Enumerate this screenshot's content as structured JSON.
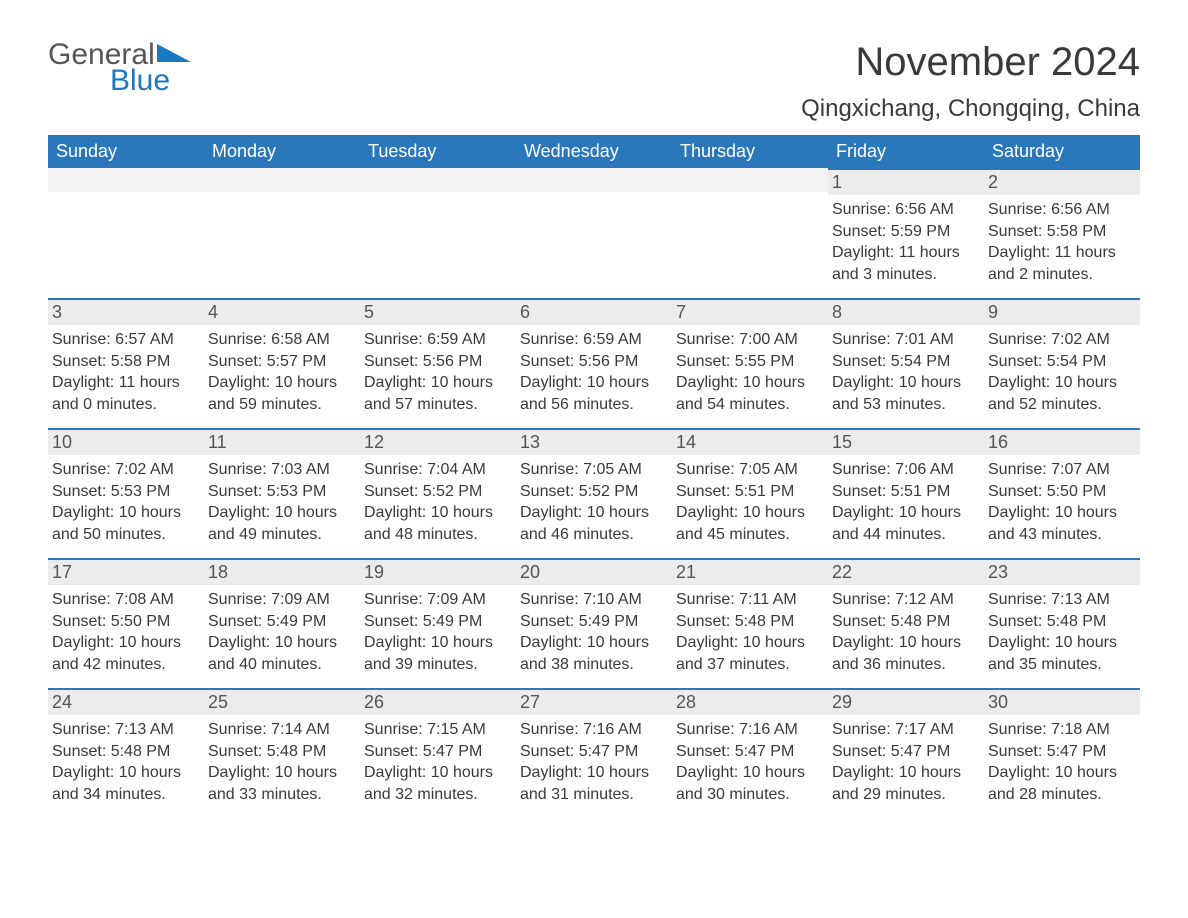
{
  "logo": {
    "word1": "General",
    "word2": "Blue"
  },
  "title": "November 2024",
  "location": "Qingxichang, Chongqing, China",
  "colors": {
    "header_bg": "#2a78bb",
    "header_text": "#ffffff",
    "strip_bg": "#ececec",
    "strip_border": "#2a78bb",
    "text": "#3a3a3a",
    "logo_gray": "#565656",
    "logo_blue": "#1c78c0",
    "background": "#ffffff"
  },
  "typography": {
    "title_fontsize": 40,
    "location_fontsize": 24,
    "header_fontsize": 18,
    "daynum_fontsize": 18,
    "body_fontsize": 16,
    "logo_fontsize": 30
  },
  "layout": {
    "columns": 7,
    "start_weekday": "Sunday",
    "first_day_column": 5
  },
  "weekdays": [
    "Sunday",
    "Monday",
    "Tuesday",
    "Wednesday",
    "Thursday",
    "Friday",
    "Saturday"
  ],
  "days": [
    {
      "n": "1",
      "sunrise": "Sunrise: 6:56 AM",
      "sunset": "Sunset: 5:59 PM",
      "daylight": "Daylight: 11 hours and 3 minutes."
    },
    {
      "n": "2",
      "sunrise": "Sunrise: 6:56 AM",
      "sunset": "Sunset: 5:58 PM",
      "daylight": "Daylight: 11 hours and 2 minutes."
    },
    {
      "n": "3",
      "sunrise": "Sunrise: 6:57 AM",
      "sunset": "Sunset: 5:58 PM",
      "daylight": "Daylight: 11 hours and 0 minutes."
    },
    {
      "n": "4",
      "sunrise": "Sunrise: 6:58 AM",
      "sunset": "Sunset: 5:57 PM",
      "daylight": "Daylight: 10 hours and 59 minutes."
    },
    {
      "n": "5",
      "sunrise": "Sunrise: 6:59 AM",
      "sunset": "Sunset: 5:56 PM",
      "daylight": "Daylight: 10 hours and 57 minutes."
    },
    {
      "n": "6",
      "sunrise": "Sunrise: 6:59 AM",
      "sunset": "Sunset: 5:56 PM",
      "daylight": "Daylight: 10 hours and 56 minutes."
    },
    {
      "n": "7",
      "sunrise": "Sunrise: 7:00 AM",
      "sunset": "Sunset: 5:55 PM",
      "daylight": "Daylight: 10 hours and 54 minutes."
    },
    {
      "n": "8",
      "sunrise": "Sunrise: 7:01 AM",
      "sunset": "Sunset: 5:54 PM",
      "daylight": "Daylight: 10 hours and 53 minutes."
    },
    {
      "n": "9",
      "sunrise": "Sunrise: 7:02 AM",
      "sunset": "Sunset: 5:54 PM",
      "daylight": "Daylight: 10 hours and 52 minutes."
    },
    {
      "n": "10",
      "sunrise": "Sunrise: 7:02 AM",
      "sunset": "Sunset: 5:53 PM",
      "daylight": "Daylight: 10 hours and 50 minutes."
    },
    {
      "n": "11",
      "sunrise": "Sunrise: 7:03 AM",
      "sunset": "Sunset: 5:53 PM",
      "daylight": "Daylight: 10 hours and 49 minutes."
    },
    {
      "n": "12",
      "sunrise": "Sunrise: 7:04 AM",
      "sunset": "Sunset: 5:52 PM",
      "daylight": "Daylight: 10 hours and 48 minutes."
    },
    {
      "n": "13",
      "sunrise": "Sunrise: 7:05 AM",
      "sunset": "Sunset: 5:52 PM",
      "daylight": "Daylight: 10 hours and 46 minutes."
    },
    {
      "n": "14",
      "sunrise": "Sunrise: 7:05 AM",
      "sunset": "Sunset: 5:51 PM",
      "daylight": "Daylight: 10 hours and 45 minutes."
    },
    {
      "n": "15",
      "sunrise": "Sunrise: 7:06 AM",
      "sunset": "Sunset: 5:51 PM",
      "daylight": "Daylight: 10 hours and 44 minutes."
    },
    {
      "n": "16",
      "sunrise": "Sunrise: 7:07 AM",
      "sunset": "Sunset: 5:50 PM",
      "daylight": "Daylight: 10 hours and 43 minutes."
    },
    {
      "n": "17",
      "sunrise": "Sunrise: 7:08 AM",
      "sunset": "Sunset: 5:50 PM",
      "daylight": "Daylight: 10 hours and 42 minutes."
    },
    {
      "n": "18",
      "sunrise": "Sunrise: 7:09 AM",
      "sunset": "Sunset: 5:49 PM",
      "daylight": "Daylight: 10 hours and 40 minutes."
    },
    {
      "n": "19",
      "sunrise": "Sunrise: 7:09 AM",
      "sunset": "Sunset: 5:49 PM",
      "daylight": "Daylight: 10 hours and 39 minutes."
    },
    {
      "n": "20",
      "sunrise": "Sunrise: 7:10 AM",
      "sunset": "Sunset: 5:49 PM",
      "daylight": "Daylight: 10 hours and 38 minutes."
    },
    {
      "n": "21",
      "sunrise": "Sunrise: 7:11 AM",
      "sunset": "Sunset: 5:48 PM",
      "daylight": "Daylight: 10 hours and 37 minutes."
    },
    {
      "n": "22",
      "sunrise": "Sunrise: 7:12 AM",
      "sunset": "Sunset: 5:48 PM",
      "daylight": "Daylight: 10 hours and 36 minutes."
    },
    {
      "n": "23",
      "sunrise": "Sunrise: 7:13 AM",
      "sunset": "Sunset: 5:48 PM",
      "daylight": "Daylight: 10 hours and 35 minutes."
    },
    {
      "n": "24",
      "sunrise": "Sunrise: 7:13 AM",
      "sunset": "Sunset: 5:48 PM",
      "daylight": "Daylight: 10 hours and 34 minutes."
    },
    {
      "n": "25",
      "sunrise": "Sunrise: 7:14 AM",
      "sunset": "Sunset: 5:48 PM",
      "daylight": "Daylight: 10 hours and 33 minutes."
    },
    {
      "n": "26",
      "sunrise": "Sunrise: 7:15 AM",
      "sunset": "Sunset: 5:47 PM",
      "daylight": "Daylight: 10 hours and 32 minutes."
    },
    {
      "n": "27",
      "sunrise": "Sunrise: 7:16 AM",
      "sunset": "Sunset: 5:47 PM",
      "daylight": "Daylight: 10 hours and 31 minutes."
    },
    {
      "n": "28",
      "sunrise": "Sunrise: 7:16 AM",
      "sunset": "Sunset: 5:47 PM",
      "daylight": "Daylight: 10 hours and 30 minutes."
    },
    {
      "n": "29",
      "sunrise": "Sunrise: 7:17 AM",
      "sunset": "Sunset: 5:47 PM",
      "daylight": "Daylight: 10 hours and 29 minutes."
    },
    {
      "n": "30",
      "sunrise": "Sunrise: 7:18 AM",
      "sunset": "Sunset: 5:47 PM",
      "daylight": "Daylight: 10 hours and 28 minutes."
    }
  ]
}
